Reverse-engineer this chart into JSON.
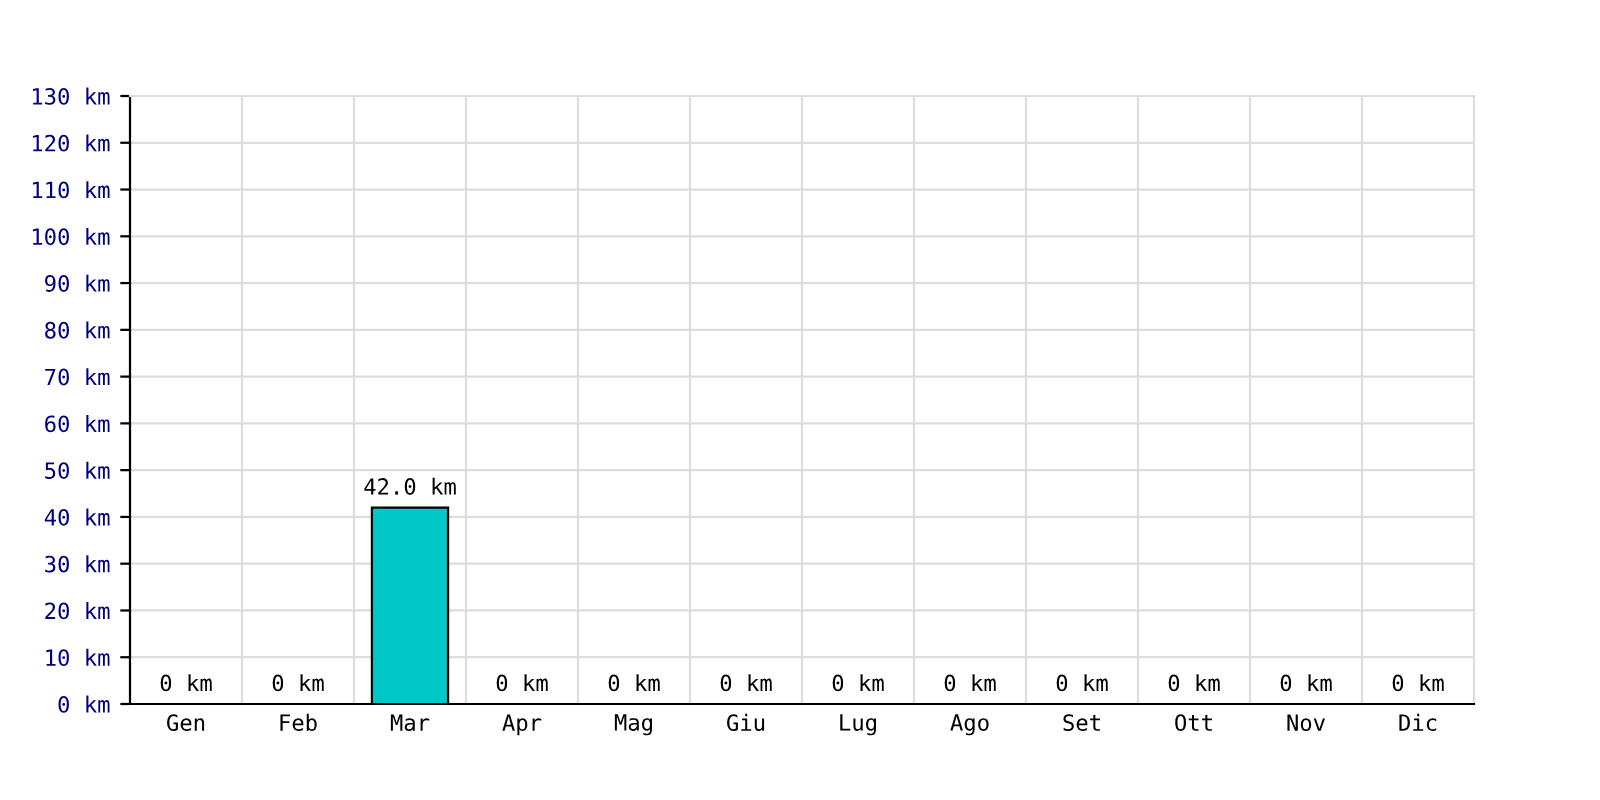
{
  "chart_data": {
    "type": "bar",
    "categories": [
      "Gen",
      "Feb",
      "Mar",
      "Apr",
      "Mag",
      "Giu",
      "Lug",
      "Ago",
      "Set",
      "Ott",
      "Nov",
      "Dic"
    ],
    "values": [
      0,
      0,
      42.0,
      0,
      0,
      0,
      0,
      0,
      0,
      0,
      0,
      0
    ],
    "value_labels": [
      "0 km",
      "0 km",
      "42.0 km",
      "0 km",
      "0 km",
      "0 km",
      "0 km",
      "0 km",
      "0 km",
      "0 km",
      "0 km",
      "0 km"
    ],
    "color": "#00c8c8",
    "ylim": [
      0,
      130
    ],
    "yticks": [
      {
        "value": 0,
        "label": "0 km"
      },
      {
        "value": 10,
        "label": "10 km"
      },
      {
        "value": 20,
        "label": "20 km"
      },
      {
        "value": 30,
        "label": "30 km"
      },
      {
        "value": 40,
        "label": "40 km"
      },
      {
        "value": 50,
        "label": "50 km"
      },
      {
        "value": 60,
        "label": "60 km"
      },
      {
        "value": 70,
        "label": "70 km"
      },
      {
        "value": 80,
        "label": "80 km"
      },
      {
        "value": 90,
        "label": "90 km"
      },
      {
        "value": 100,
        "label": "100 km"
      },
      {
        "value": 110,
        "label": "110 km"
      },
      {
        "value": 120,
        "label": "120 km"
      },
      {
        "value": 130,
        "label": "130 km"
      }
    ],
    "grid": true
  }
}
